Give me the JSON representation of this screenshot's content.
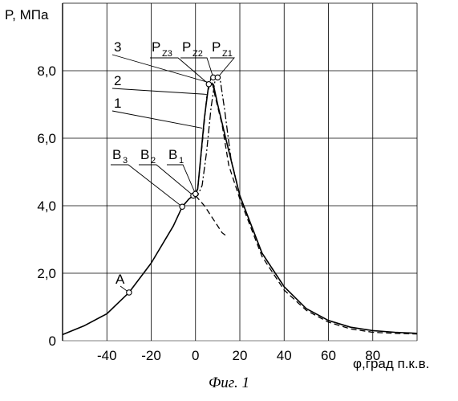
{
  "chart_data": {
    "type": "line",
    "ylabel": "P, МПа",
    "xlabel": "φ,град п.к.в.",
    "xlim": [
      -60,
      100
    ],
    "ylim": [
      0,
      10
    ],
    "grid": true,
    "xticks": [
      -40,
      -20,
      0,
      20,
      40,
      60,
      80
    ],
    "xtick_labels": [
      "-40",
      "-20",
      "0",
      "20",
      "40",
      "60",
      "80"
    ],
    "yticks": [
      0,
      2,
      4,
      6,
      8
    ],
    "ytick_labels": [
      "0",
      "2,0",
      "4,0",
      "6,0",
      "8,0"
    ],
    "series": [
      {
        "name": "1",
        "style": "solid",
        "points": [
          [
            -60,
            0.18
          ],
          [
            -50,
            0.45
          ],
          [
            -40,
            0.8
          ],
          [
            -30,
            1.43
          ],
          [
            -20,
            2.3
          ],
          [
            -10,
            3.4
          ],
          [
            -6,
            3.97
          ],
          [
            -3,
            4.2
          ],
          [
            -1,
            4.3
          ],
          [
            0,
            4.35
          ],
          [
            1,
            4.5
          ],
          [
            2,
            5.2
          ],
          [
            4,
            6.6
          ],
          [
            6,
            7.6
          ],
          [
            8,
            7.6
          ],
          [
            10,
            7.0
          ],
          [
            14,
            5.9
          ],
          [
            20,
            4.3
          ],
          [
            30,
            2.6
          ],
          [
            40,
            1.6
          ],
          [
            50,
            0.95
          ],
          [
            60,
            0.6
          ],
          [
            70,
            0.4
          ],
          [
            80,
            0.3
          ],
          [
            90,
            0.25
          ],
          [
            100,
            0.22
          ]
        ]
      },
      {
        "name": "2",
        "style": "dashed",
        "points": [
          [
            -6,
            3.97
          ],
          [
            -3,
            4.2
          ],
          [
            -1,
            4.3
          ],
          [
            1,
            4.5
          ],
          [
            3,
            5.8
          ],
          [
            5,
            7.2
          ],
          [
            7,
            7.8
          ],
          [
            9,
            7.2
          ],
          [
            12,
            6.4
          ],
          [
            15,
            5.2
          ],
          [
            20,
            4.2
          ],
          [
            30,
            2.5
          ],
          [
            40,
            1.5
          ],
          [
            50,
            0.9
          ],
          [
            60,
            0.55
          ],
          [
            70,
            0.35
          ],
          [
            80,
            0.25
          ],
          [
            90,
            0.22
          ],
          [
            100,
            0.2
          ]
        ]
      },
      {
        "name": "3",
        "style": "dashdot",
        "points": [
          [
            -1,
            4.35
          ],
          [
            1,
            4.3
          ],
          [
            3,
            4.6
          ],
          [
            5,
            5.6
          ],
          [
            7,
            6.9
          ],
          [
            9,
            7.8
          ],
          [
            11,
            7.8
          ],
          [
            13,
            6.9
          ],
          [
            16,
            5.4
          ],
          [
            20,
            4.3
          ],
          [
            30,
            2.6
          ],
          [
            40,
            1.6
          ]
        ]
      },
      {
        "name": "",
        "style": "dashed",
        "points": [
          [
            0,
            4.3
          ],
          [
            4,
            4.0
          ],
          [
            8,
            3.6
          ],
          [
            12,
            3.2
          ],
          [
            14,
            3.1
          ]
        ]
      }
    ],
    "markers": [
      {
        "label": "A",
        "x": -30,
        "y": 1.43
      },
      {
        "label": "B3",
        "x": -6,
        "y": 3.97
      },
      {
        "label": "B2",
        "x": -1,
        "y": 4.3
      },
      {
        "label": "B1",
        "x": 0,
        "y": 4.35
      },
      {
        "label": "Pz3",
        "x": 6,
        "y": 7.6
      },
      {
        "label": "Pz2",
        "x": 8,
        "y": 7.8
      },
      {
        "label": "Pz1",
        "x": 10,
        "y": 7.8
      }
    ],
    "annotations": {
      "curve_1": "1",
      "curve_2": "2",
      "curve_3": "3",
      "point_A": "A",
      "B3_main": "B",
      "B3_sub": "3",
      "B2_main": "B",
      "B2_sub": "2",
      "B1_main": "B",
      "B1_sub": "1",
      "Pz3_main": "P",
      "Pz3_sub": "Z3",
      "Pz2_main": "P",
      "Pz2_sub": "Z2",
      "Pz1_main": "P",
      "Pz1_sub": "Z1"
    }
  },
  "caption": "Фиг. 1"
}
